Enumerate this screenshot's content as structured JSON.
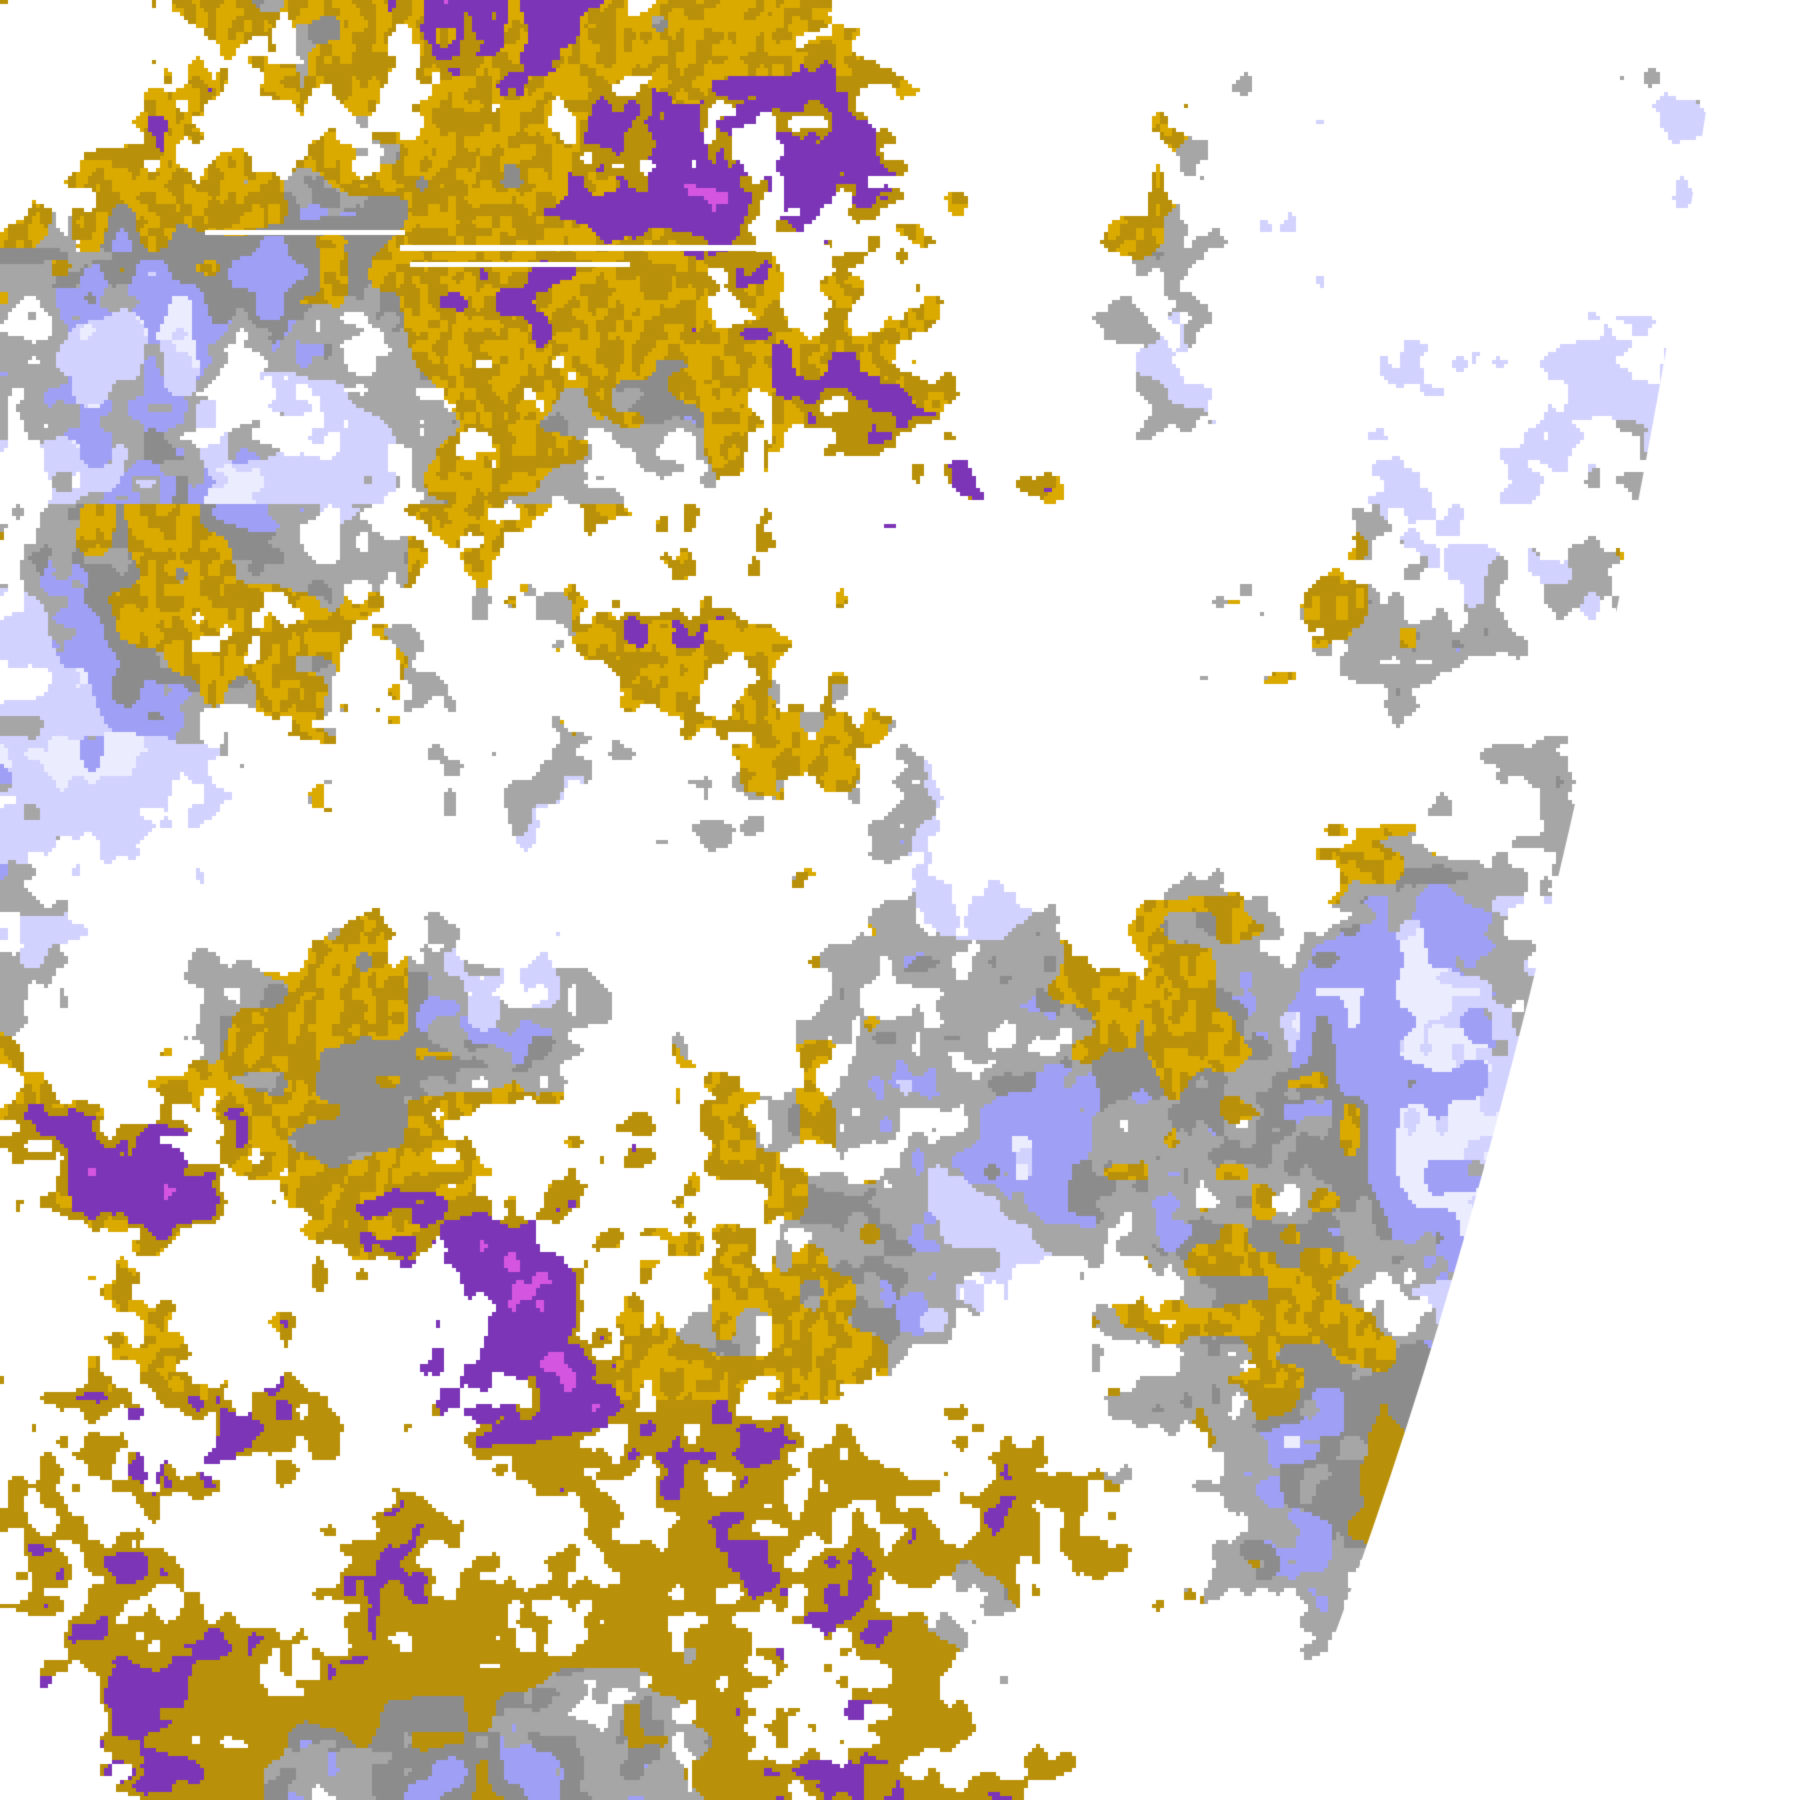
{
  "image": {
    "kind": "satellite cloud classification imagery",
    "background_color": "#ffffff",
    "palette": {
      "clear": "#ffffff",
      "gold": "#dbaa00",
      "dark_gold": "#b8900a",
      "purple": "#7d35b8",
      "magenta": "#d455e0",
      "lavender": "#9f9ff5",
      "light_lavender": "#d2d2ff",
      "pale_lavender": "#ececff",
      "gray": "#a6a6a6",
      "dark_gray": "#8c8c8c"
    }
  }
}
